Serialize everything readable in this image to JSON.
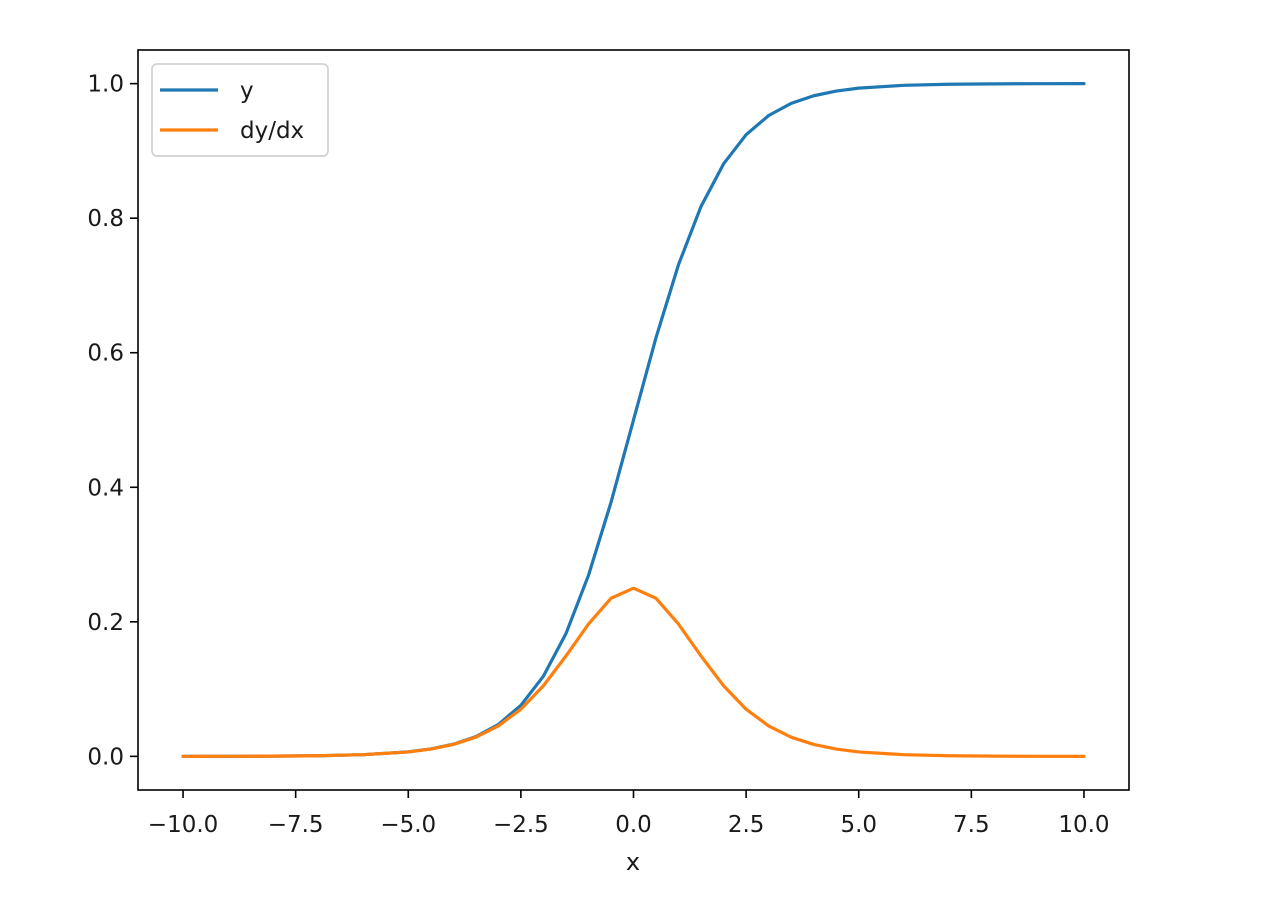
{
  "chart_data": {
    "type": "line",
    "title": "",
    "xlabel": "x",
    "ylabel": "",
    "xlim": [
      -11.0,
      11.0
    ],
    "ylim": [
      -0.05,
      1.05
    ],
    "grid": false,
    "legend_position": "upper-left",
    "x_ticks": [
      -10.0,
      -7.5,
      -5.0,
      -2.5,
      0.0,
      2.5,
      5.0,
      7.5,
      10.0
    ],
    "x_tick_labels": [
      "−10.0",
      "−7.5",
      "−5.0",
      "−2.5",
      "0.0",
      "2.5",
      "5.0",
      "7.5",
      "10.0"
    ],
    "y_ticks": [
      0.0,
      0.2,
      0.4,
      0.6,
      0.8,
      1.0
    ],
    "y_tick_labels": [
      "0.0",
      "0.2",
      "0.4",
      "0.6",
      "0.8",
      "1.0"
    ],
    "x": [
      -10.0,
      -9.0,
      -8.0,
      -7.0,
      -6.0,
      -5.0,
      -4.5,
      -4.0,
      -3.5,
      -3.0,
      -2.5,
      -2.0,
      -1.5,
      -1.0,
      -0.5,
      0.0,
      0.5,
      1.0,
      1.5,
      2.0,
      2.5,
      3.0,
      3.5,
      4.0,
      4.5,
      5.0,
      6.0,
      7.0,
      8.0,
      9.0,
      10.0
    ],
    "series": [
      {
        "name": "y",
        "color": "#1f77b4",
        "values": [
          0.0,
          0.0001,
          0.0003,
          0.0009,
          0.0025,
          0.0067,
          0.011,
          0.018,
          0.0293,
          0.0474,
          0.0759,
          0.1192,
          0.1824,
          0.2689,
          0.3775,
          0.5,
          0.6225,
          0.7311,
          0.8176,
          0.8808,
          0.9241,
          0.9526,
          0.9707,
          0.982,
          0.989,
          0.9933,
          0.9975,
          0.9991,
          0.9997,
          0.9999,
          1.0
        ]
      },
      {
        "name": "dy/dx",
        "color": "#ff7f0e",
        "values": [
          0.0,
          0.0001,
          0.0003,
          0.0009,
          0.0025,
          0.0066,
          0.0109,
          0.0177,
          0.0285,
          0.0452,
          0.0701,
          0.105,
          0.1491,
          0.1966,
          0.235,
          0.25,
          0.235,
          0.1966,
          0.1491,
          0.105,
          0.0701,
          0.0452,
          0.0285,
          0.0177,
          0.0109,
          0.0066,
          0.0025,
          0.0009,
          0.0003,
          0.0001,
          0.0
        ]
      }
    ]
  }
}
